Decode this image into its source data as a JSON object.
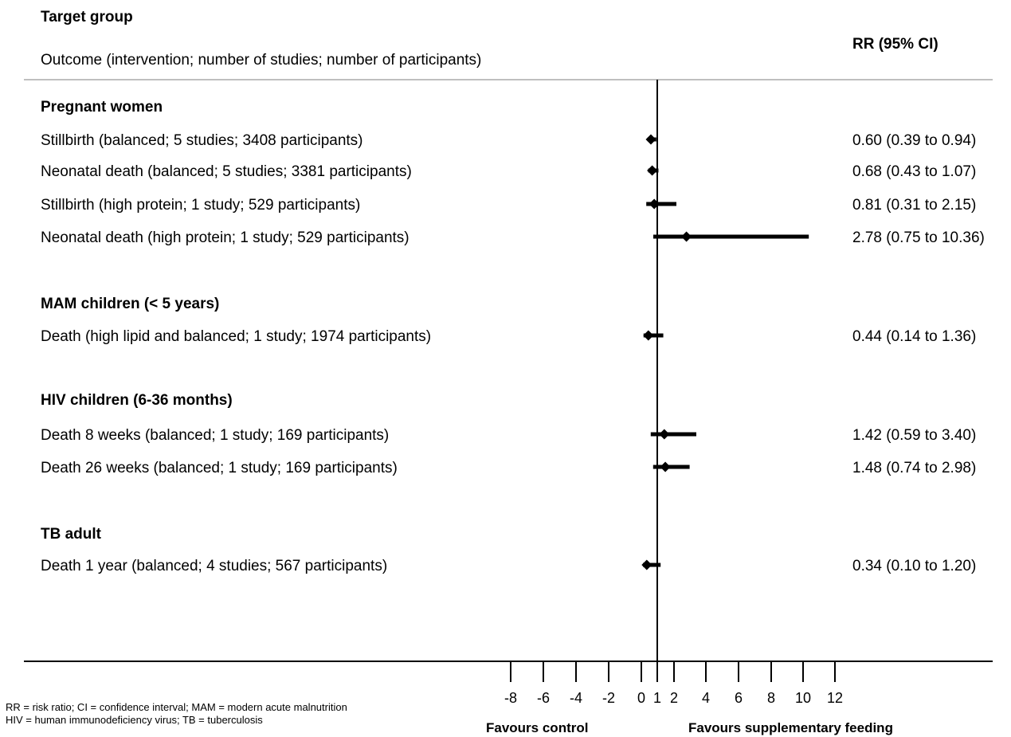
{
  "header": {
    "target_group": "Target group",
    "outcome": "Outcome (intervention;  number of studies; number of participants)",
    "rr_header": "RR (95% CI)"
  },
  "footnote": {
    "line1": "RR = risk ratio; CI = confidence interval; MAM  = modern acute malnutrition",
    "line2": "HIV = human immunodeficiency virus; TB = tuberculosis"
  },
  "chart_data": {
    "type": "forest",
    "x_ticks": [
      -8,
      -6,
      -4,
      -2,
      0,
      1,
      2,
      4,
      6,
      8,
      10,
      12
    ],
    "x_tick_labels": [
      "-8",
      "-6",
      "-4",
      "-2",
      "0",
      "1",
      "2",
      "4",
      "6",
      "8",
      "10",
      "12"
    ],
    "xlim": [
      -8,
      12
    ],
    "reference_line": 1,
    "xlabel_left": "Favours control",
    "xlabel_right": "Favours supplementary feeding",
    "groups": [
      {
        "name": "Pregnant women",
        "rows": [
          {
            "label": "Stillbirth (balanced; 5 studies; 3408 participants)",
            "rr": 0.6,
            "lo": 0.39,
            "hi": 0.94,
            "ci_text": "0.60 (0.39 to 0.94)"
          },
          {
            "label": "Neonatal death (balanced; 5 studies; 3381 participants)",
            "rr": 0.68,
            "lo": 0.43,
            "hi": 1.07,
            "ci_text": "0.68 (0.43 to 1.07)"
          },
          {
            "label": "Stillbirth (high protein; 1 study; 529 participants)",
            "rr": 0.81,
            "lo": 0.31,
            "hi": 2.15,
            "ci_text": "0.81 (0.31 to 2.15)"
          },
          {
            "label": "Neonatal death (high protein; 1 study; 529 participants)",
            "rr": 2.78,
            "lo": 0.75,
            "hi": 10.36,
            "ci_text": "2.78 (0.75 to 10.36)"
          }
        ]
      },
      {
        "name": "MAM children (< 5 years)",
        "rows": [
          {
            "label": "Death (high lipid and balanced; 1 study; 1974 participants)",
            "rr": 0.44,
            "lo": 0.14,
            "hi": 1.36,
            "ci_text": "0.44 (0.14 to 1.36)"
          }
        ]
      },
      {
        "name": "HIV children (6-36 months)",
        "rows": [
          {
            "label": "Death 8 weeks (balanced; 1 study; 169 participants)",
            "rr": 1.42,
            "lo": 0.59,
            "hi": 3.4,
            "ci_text": "1.42 (0.59 to 3.40)"
          },
          {
            "label": "Death 26 weeks (balanced; 1 study; 169 participants)",
            "rr": 1.48,
            "lo": 0.74,
            "hi": 2.98,
            "ci_text": "1.48 (0.74 to 2.98)"
          }
        ]
      },
      {
        "name": "TB adult",
        "rows": [
          {
            "label": "Death 1 year (balanced; 4 studies; 567 participants)",
            "rr": 0.34,
            "lo": 0.1,
            "hi": 1.2,
            "ci_text": "0.34 (0.10 to 1.20)"
          }
        ]
      }
    ]
  }
}
